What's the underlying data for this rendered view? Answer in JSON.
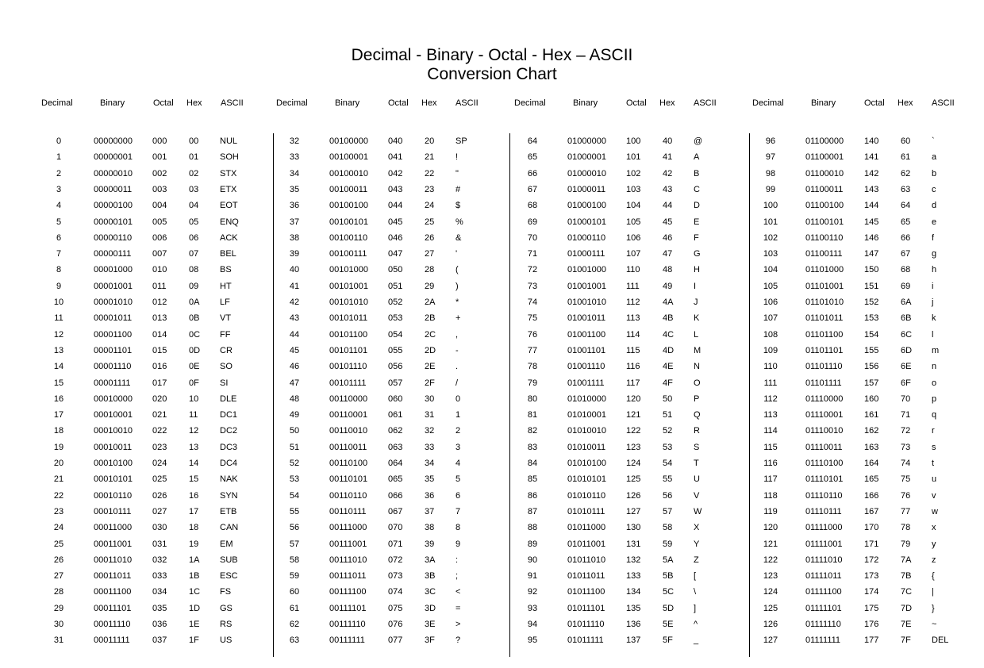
{
  "title": {
    "line1": "Decimal - Binary - Octal - Hex – ASCII",
    "line2": "Conversion Chart"
  },
  "column_headers": [
    "Decimal",
    "Binary",
    "Octal",
    "Hex",
    "ASCII"
  ],
  "blocks": [
    {
      "rows": [
        [
          "0",
          "00000000",
          "000",
          "00",
          "NUL"
        ],
        [
          "1",
          "00000001",
          "001",
          "01",
          "SOH"
        ],
        [
          "2",
          "00000010",
          "002",
          "02",
          "STX"
        ],
        [
          "3",
          "00000011",
          "003",
          "03",
          "ETX"
        ],
        [
          "4",
          "00000100",
          "004",
          "04",
          "EOT"
        ],
        [
          "5",
          "00000101",
          "005",
          "05",
          "ENQ"
        ],
        [
          "6",
          "00000110",
          "006",
          "06",
          "ACK"
        ],
        [
          "7",
          "00000111",
          "007",
          "07",
          "BEL"
        ],
        [
          "8",
          "00001000",
          "010",
          "08",
          "BS"
        ],
        [
          "9",
          "00001001",
          "011",
          "09",
          "HT"
        ],
        [
          "10",
          "00001010",
          "012",
          "0A",
          "LF"
        ],
        [
          "11",
          "00001011",
          "013",
          "0B",
          "VT"
        ],
        [
          "12",
          "00001100",
          "014",
          "0C",
          "FF"
        ],
        [
          "13",
          "00001101",
          "015",
          "0D",
          "CR"
        ],
        [
          "14",
          "00001110",
          "016",
          "0E",
          "SO"
        ],
        [
          "15",
          "00001111",
          "017",
          "0F",
          "SI"
        ],
        [
          "16",
          "00010000",
          "020",
          "10",
          "DLE"
        ],
        [
          "17",
          "00010001",
          "021",
          "11",
          "DC1"
        ],
        [
          "18",
          "00010010",
          "022",
          "12",
          "DC2"
        ],
        [
          "19",
          "00010011",
          "023",
          "13",
          "DC3"
        ],
        [
          "20",
          "00010100",
          "024",
          "14",
          "DC4"
        ],
        [
          "21",
          "00010101",
          "025",
          "15",
          "NAK"
        ],
        [
          "22",
          "00010110",
          "026",
          "16",
          "SYN"
        ],
        [
          "23",
          "00010111",
          "027",
          "17",
          "ETB"
        ],
        [
          "24",
          "00011000",
          "030",
          "18",
          "CAN"
        ],
        [
          "25",
          "00011001",
          "031",
          "19",
          "EM"
        ],
        [
          "26",
          "00011010",
          "032",
          "1A",
          "SUB"
        ],
        [
          "27",
          "00011011",
          "033",
          "1B",
          "ESC"
        ],
        [
          "28",
          "00011100",
          "034",
          "1C",
          "FS"
        ],
        [
          "29",
          "00011101",
          "035",
          "1D",
          "GS"
        ],
        [
          "30",
          "00011110",
          "036",
          "1E",
          "RS"
        ],
        [
          "31",
          "00011111",
          "037",
          "1F",
          "US"
        ]
      ]
    },
    {
      "rows": [
        [
          "32",
          "00100000",
          "040",
          "20",
          "SP"
        ],
        [
          "33",
          "00100001",
          "041",
          "21",
          "!"
        ],
        [
          "34",
          "00100010",
          "042",
          "22",
          "\""
        ],
        [
          "35",
          "00100011",
          "043",
          "23",
          "#"
        ],
        [
          "36",
          "00100100",
          "044",
          "24",
          "$"
        ],
        [
          "37",
          "00100101",
          "045",
          "25",
          "%"
        ],
        [
          "38",
          "00100110",
          "046",
          "26",
          "&"
        ],
        [
          "39",
          "00100111",
          "047",
          "27",
          "'"
        ],
        [
          "40",
          "00101000",
          "050",
          "28",
          "("
        ],
        [
          "41",
          "00101001",
          "051",
          "29",
          ")"
        ],
        [
          "42",
          "00101010",
          "052",
          "2A",
          "*"
        ],
        [
          "43",
          "00101011",
          "053",
          "2B",
          "+"
        ],
        [
          "44",
          "00101100",
          "054",
          "2C",
          ","
        ],
        [
          "45",
          "00101101",
          "055",
          "2D",
          "-"
        ],
        [
          "46",
          "00101110",
          "056",
          "2E",
          "."
        ],
        [
          "47",
          "00101111",
          "057",
          "2F",
          "/"
        ],
        [
          "48",
          "00110000",
          "060",
          "30",
          "0"
        ],
        [
          "49",
          "00110001",
          "061",
          "31",
          "1"
        ],
        [
          "50",
          "00110010",
          "062",
          "32",
          "2"
        ],
        [
          "51",
          "00110011",
          "063",
          "33",
          "3"
        ],
        [
          "52",
          "00110100",
          "064",
          "34",
          "4"
        ],
        [
          "53",
          "00110101",
          "065",
          "35",
          "5"
        ],
        [
          "54",
          "00110110",
          "066",
          "36",
          "6"
        ],
        [
          "55",
          "00110111",
          "067",
          "37",
          "7"
        ],
        [
          "56",
          "00111000",
          "070",
          "38",
          "8"
        ],
        [
          "57",
          "00111001",
          "071",
          "39",
          "9"
        ],
        [
          "58",
          "00111010",
          "072",
          "3A",
          ":"
        ],
        [
          "59",
          "00111011",
          "073",
          "3B",
          ";"
        ],
        [
          "60",
          "00111100",
          "074",
          "3C",
          "<"
        ],
        [
          "61",
          "00111101",
          "075",
          "3D",
          "="
        ],
        [
          "62",
          "00111110",
          "076",
          "3E",
          ">"
        ],
        [
          "63",
          "00111111",
          "077",
          "3F",
          "?"
        ]
      ]
    },
    {
      "rows": [
        [
          "64",
          "01000000",
          "100",
          "40",
          "@"
        ],
        [
          "65",
          "01000001",
          "101",
          "41",
          "A"
        ],
        [
          "66",
          "01000010",
          "102",
          "42",
          "B"
        ],
        [
          "67",
          "01000011",
          "103",
          "43",
          "C"
        ],
        [
          "68",
          "01000100",
          "104",
          "44",
          "D"
        ],
        [
          "69",
          "01000101",
          "105",
          "45",
          "E"
        ],
        [
          "70",
          "01000110",
          "106",
          "46",
          "F"
        ],
        [
          "71",
          "01000111",
          "107",
          "47",
          "G"
        ],
        [
          "72",
          "01001000",
          "110",
          "48",
          "H"
        ],
        [
          "73",
          "01001001",
          "111",
          "49",
          "I"
        ],
        [
          "74",
          "01001010",
          "112",
          "4A",
          "J"
        ],
        [
          "75",
          "01001011",
          "113",
          "4B",
          "K"
        ],
        [
          "76",
          "01001100",
          "114",
          "4C",
          "L"
        ],
        [
          "77",
          "01001101",
          "115",
          "4D",
          "M"
        ],
        [
          "78",
          "01001110",
          "116",
          "4E",
          "N"
        ],
        [
          "79",
          "01001111",
          "117",
          "4F",
          "O"
        ],
        [
          "80",
          "01010000",
          "120",
          "50",
          "P"
        ],
        [
          "81",
          "01010001",
          "121",
          "51",
          "Q"
        ],
        [
          "82",
          "01010010",
          "122",
          "52",
          "R"
        ],
        [
          "83",
          "01010011",
          "123",
          "53",
          "S"
        ],
        [
          "84",
          "01010100",
          "124",
          "54",
          "T"
        ],
        [
          "85",
          "01010101",
          "125",
          "55",
          "U"
        ],
        [
          "86",
          "01010110",
          "126",
          "56",
          "V"
        ],
        [
          "87",
          "01010111",
          "127",
          "57",
          "W"
        ],
        [
          "88",
          "01011000",
          "130",
          "58",
          "X"
        ],
        [
          "89",
          "01011001",
          "131",
          "59",
          "Y"
        ],
        [
          "90",
          "01011010",
          "132",
          "5A",
          "Z"
        ],
        [
          "91",
          "01011011",
          "133",
          "5B",
          "["
        ],
        [
          "92",
          "01011100",
          "134",
          "5C",
          "\\"
        ],
        [
          "93",
          "01011101",
          "135",
          "5D",
          "]"
        ],
        [
          "94",
          "01011110",
          "136",
          "5E",
          "^"
        ],
        [
          "95",
          "01011111",
          "137",
          "5F",
          "_"
        ]
      ]
    },
    {
      "rows": [
        [
          "96",
          "01100000",
          "140",
          "60",
          "`"
        ],
        [
          "97",
          "01100001",
          "141",
          "61",
          "a"
        ],
        [
          "98",
          "01100010",
          "142",
          "62",
          "b"
        ],
        [
          "99",
          "01100011",
          "143",
          "63",
          "c"
        ],
        [
          "100",
          "01100100",
          "144",
          "64",
          "d"
        ],
        [
          "101",
          "01100101",
          "145",
          "65",
          "e"
        ],
        [
          "102",
          "01100110",
          "146",
          "66",
          "f"
        ],
        [
          "103",
          "01100111",
          "147",
          "67",
          "g"
        ],
        [
          "104",
          "01101000",
          "150",
          "68",
          "h"
        ],
        [
          "105",
          "01101001",
          "151",
          "69",
          "i"
        ],
        [
          "106",
          "01101010",
          "152",
          "6A",
          "j"
        ],
        [
          "107",
          "01101011",
          "153",
          "6B",
          "k"
        ],
        [
          "108",
          "01101100",
          "154",
          "6C",
          "l"
        ],
        [
          "109",
          "01101101",
          "155",
          "6D",
          "m"
        ],
        [
          "110",
          "01101110",
          "156",
          "6E",
          "n"
        ],
        [
          "111",
          "01101111",
          "157",
          "6F",
          "o"
        ],
        [
          "112",
          "01110000",
          "160",
          "70",
          "p"
        ],
        [
          "113",
          "01110001",
          "161",
          "71",
          "q"
        ],
        [
          "114",
          "01110010",
          "162",
          "72",
          "r"
        ],
        [
          "115",
          "01110011",
          "163",
          "73",
          "s"
        ],
        [
          "116",
          "01110100",
          "164",
          "74",
          "t"
        ],
        [
          "117",
          "01110101",
          "165",
          "75",
          "u"
        ],
        [
          "118",
          "01110110",
          "166",
          "76",
          "v"
        ],
        [
          "119",
          "01110111",
          "167",
          "77",
          "w"
        ],
        [
          "120",
          "01111000",
          "170",
          "78",
          "x"
        ],
        [
          "121",
          "01111001",
          "171",
          "79",
          "y"
        ],
        [
          "122",
          "01111010",
          "172",
          "7A",
          "z"
        ],
        [
          "123",
          "01111011",
          "173",
          "7B",
          "{"
        ],
        [
          "124",
          "01111100",
          "174",
          "7C",
          "|"
        ],
        [
          "125",
          "01111101",
          "175",
          "7D",
          "}"
        ],
        [
          "126",
          "01111110",
          "176",
          "7E",
          "~"
        ],
        [
          "127",
          "01111111",
          "177",
          "7F",
          "DEL"
        ]
      ]
    }
  ]
}
